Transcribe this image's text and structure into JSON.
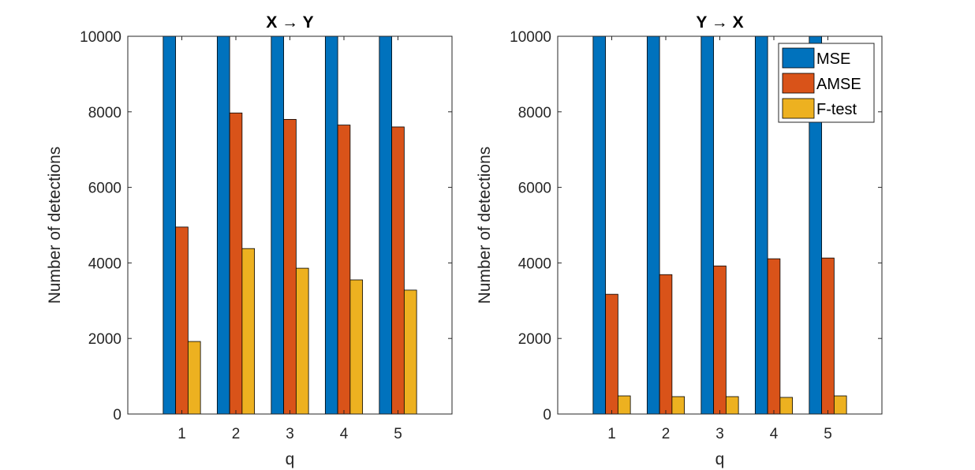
{
  "chart_data": [
    {
      "type": "bar",
      "title": "X → Y",
      "xlabel": "q",
      "ylabel": "Number of detections",
      "categories": [
        "1",
        "2",
        "3",
        "4",
        "5"
      ],
      "ylim": [
        0,
        10000
      ],
      "yticks": [
        0,
        2000,
        4000,
        6000,
        8000,
        10000
      ],
      "series": [
        {
          "name": "MSE",
          "color": "#0072BD",
          "values": [
            10000,
            10000,
            10000,
            10000,
            10000
          ]
        },
        {
          "name": "AMSE",
          "color": "#D95319",
          "values": [
            4950,
            7970,
            7800,
            7650,
            7600
          ]
        },
        {
          "name": "F-test",
          "color": "#EDB120",
          "values": [
            1920,
            4380,
            3860,
            3550,
            3280
          ]
        }
      ],
      "legend": false
    },
    {
      "type": "bar",
      "title": "Y → X",
      "xlabel": "q",
      "ylabel": "Number of detections",
      "categories": [
        "1",
        "2",
        "3",
        "4",
        "5"
      ],
      "ylim": [
        0,
        10000
      ],
      "yticks": [
        0,
        2000,
        4000,
        6000,
        8000,
        10000
      ],
      "series": [
        {
          "name": "MSE",
          "color": "#0072BD",
          "values": [
            10000,
            10000,
            10000,
            10000,
            10000
          ]
        },
        {
          "name": "AMSE",
          "color": "#D95319",
          "values": [
            3170,
            3690,
            3920,
            4110,
            4130
          ]
        },
        {
          "name": "F-test",
          "color": "#EDB120",
          "values": [
            480,
            460,
            460,
            440,
            480
          ]
        }
      ],
      "legend": true,
      "legend_position": "top-right"
    }
  ]
}
